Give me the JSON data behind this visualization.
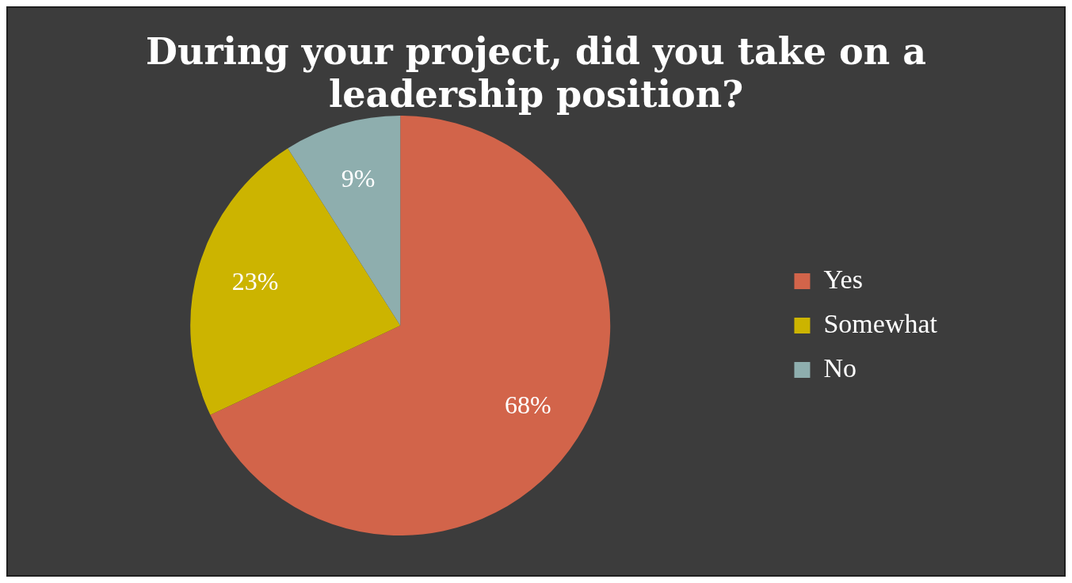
{
  "chart_data": {
    "type": "pie",
    "title": "During your project, did you take on a leadership position?",
    "categories": [
      "Yes",
      "Somewhat",
      "No"
    ],
    "values": [
      68,
      23,
      9
    ],
    "colors": [
      "#d2644a",
      "#ccb400",
      "#8eaeae"
    ],
    "value_labels": [
      "68%",
      "23%",
      "9%"
    ],
    "legend": "right"
  }
}
